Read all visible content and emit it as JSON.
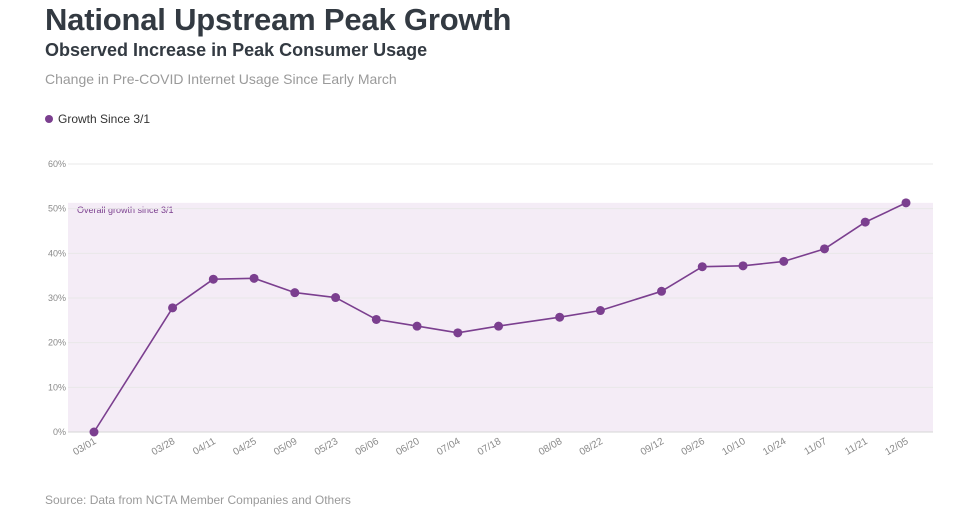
{
  "title": "National Upstream Peak Growth",
  "subtitle": "Observed Increase in Peak Consumer Usage",
  "description": "Change in Pre-COVID Internet Usage Since Early March",
  "source": "Source: Data from NCTA Member Companies and Others",
  "colors": {
    "series": "#7b3f8f",
    "band": "#f4ecf6",
    "grid": "#e8e8e8"
  },
  "chart_data": {
    "type": "line",
    "title": "National Upstream Peak Growth",
    "subtitle": "Observed Increase in Peak Consumer Usage",
    "xlabel": "",
    "ylabel": "",
    "x_type": "date",
    "x": [
      "2020-03-01",
      "2020-03-28",
      "2020-04-11",
      "2020-04-25",
      "2020-05-09",
      "2020-05-23",
      "2020-06-06",
      "2020-06-20",
      "2020-07-04",
      "2020-07-18",
      "2020-08-08",
      "2020-08-22",
      "2020-09-12",
      "2020-09-26",
      "2020-10-10",
      "2020-10-24",
      "2020-11-07",
      "2020-11-21",
      "2020-12-05"
    ],
    "categories": [
      "03/01",
      "03/28",
      "04/11",
      "04/25",
      "05/09",
      "05/23",
      "06/06",
      "06/20",
      "07/04",
      "07/18",
      "08/08",
      "08/22",
      "09/12",
      "09/26",
      "10/10",
      "10/24",
      "11/07",
      "11/21",
      "12/05"
    ],
    "series": [
      {
        "name": "Growth Since 3/1",
        "values": [
          0,
          27.8,
          34.2,
          34.4,
          31.2,
          30.1,
          25.2,
          23.7,
          22.2,
          23.7,
          25.7,
          27.2,
          31.5,
          37.0,
          37.2,
          38.2,
          41.0,
          47.0,
          51.3
        ]
      }
    ],
    "ylim": [
      0,
      60
    ],
    "yticks": [
      0,
      10,
      20,
      30,
      40,
      50,
      60
    ],
    "ytick_labels": [
      "0%",
      "10%",
      "20%",
      "30%",
      "40%",
      "50%",
      "60%"
    ],
    "grid": true,
    "legend_position": "top-left",
    "annotations": [
      {
        "type": "band",
        "from": "2020-03-01",
        "to": "2020-12-05",
        "y_from": 0,
        "y_to": 51.3,
        "label": "Overall growth since 3/1"
      }
    ]
  }
}
